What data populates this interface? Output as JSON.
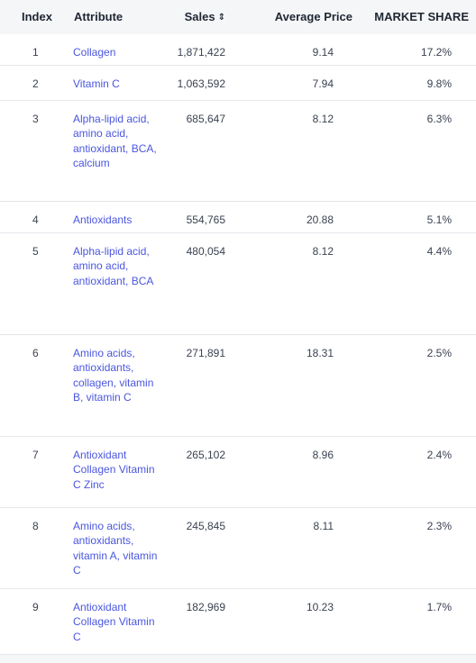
{
  "columns": {
    "index": "Index",
    "attribute": "Attribute",
    "sales": "Sales",
    "average_price": "Average Price",
    "market_share": "MARKET SHARE"
  },
  "rows": [
    {
      "index": "1",
      "attribute": "Collagen",
      "sales": "1,871,422",
      "avg": "9.14",
      "share": "17.2%"
    },
    {
      "index": "2",
      "attribute": "Vitamin C",
      "sales": "1,063,592",
      "avg": "7.94",
      "share": "9.8%"
    },
    {
      "index": "3",
      "attribute": "Alpha-lipid acid, amino acid, antioxidant, BCA, calcium",
      "sales": "685,647",
      "avg": "8.12",
      "share": "6.3%"
    },
    {
      "index": "4",
      "attribute": "Antioxidants",
      "sales": "554,765",
      "avg": "20.88",
      "share": "5.1%"
    },
    {
      "index": "5",
      "attribute": "Alpha-lipid acid, amino acid, antioxidant, BCA",
      "sales": "480,054",
      "avg": "8.12",
      "share": "4.4%"
    },
    {
      "index": "6",
      "attribute": "Amino acids, antioxidants, collagen, vitamin B, vitamin C",
      "sales": "271,891",
      "avg": "18.31",
      "share": "2.5%"
    },
    {
      "index": "7",
      "attribute": "Antioxidant Collagen Vitamin C Zinc",
      "sales": "265,102",
      "avg": "8.96",
      "share": "2.4%"
    },
    {
      "index": "8",
      "attribute": "Amino acids, antioxidants, vitamin A, vitamin C",
      "sales": "245,845",
      "avg": "8.11",
      "share": "2.3%"
    },
    {
      "index": "9",
      "attribute": "Antioxidant Collagen Vitamin C",
      "sales": "182,969",
      "avg": "10.23",
      "share": "1.7%"
    }
  ]
}
